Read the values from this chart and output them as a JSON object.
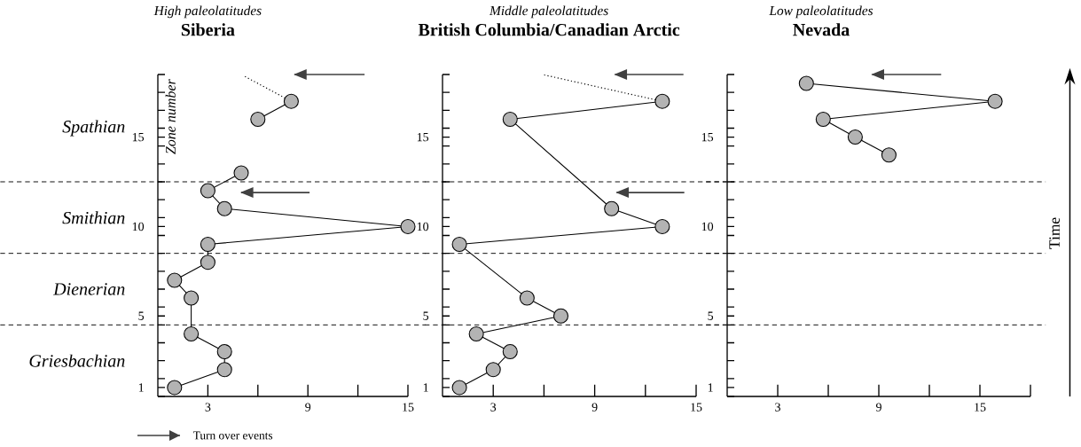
{
  "chart_data": [
    {
      "type": "line",
      "title": "Siberia",
      "subtitle": "High paleolatitudes",
      "ylabel": "Zone number",
      "marker": "circle",
      "line_style": "solid",
      "legend": "bottom left",
      "xlim": [
        0,
        15
      ],
      "xticks": [
        3,
        {
          "value": 6,
          "label": null
        },
        9,
        {
          "value": 12,
          "label": null
        },
        15
      ],
      "ylim": [
        0.5,
        18.5
      ],
      "yticks": [
        {
          "value": 0.5,
          "label": null
        },
        {
          "value": 1.5,
          "label": null
        },
        {
          "value": 2.5,
          "label": null
        },
        {
          "value": 3.5,
          "label": null
        },
        {
          "value": 4.5,
          "label": null
        },
        {
          "value": 5.5,
          "label": null
        },
        {
          "value": 6.5,
          "label": null
        },
        {
          "value": 7.5,
          "label": null
        },
        {
          "value": 8.5,
          "label": null
        },
        {
          "value": 9.5,
          "label": null
        },
        {
          "value": 10.5,
          "label": null
        },
        {
          "value": 11.5,
          "label": null
        },
        {
          "value": 12.5,
          "label": null
        },
        {
          "value": 13.5,
          "label": null
        },
        {
          "value": 14.5,
          "label": null
        },
        {
          "value": 15.5,
          "label": null
        },
        {
          "value": 16.5,
          "label": null
        },
        {
          "value": 17.5,
          "label": null
        },
        {
          "value": 18.5,
          "label": null
        },
        1,
        5,
        10,
        15
      ],
      "ref_lines": [
        {
          "axis": "y",
          "value": 4.5,
          "line_style": "dashed"
        },
        {
          "axis": "y",
          "value": 8.5,
          "line_style": "dashed"
        },
        {
          "axis": "y",
          "value": 12.5,
          "line_style": "dashed"
        }
      ],
      "annotations": [
        "Griesbachian",
        "Dienerian",
        "Smithian",
        "Spathian"
      ],
      "series": [
        {
          "color": "#b3b3b3",
          "x": [
            1,
            4,
            4,
            2,
            2,
            1,
            3,
            3,
            15,
            4,
            3,
            5,
            null,
            6,
            8
          ],
          "values": [
            1,
            2,
            3,
            4,
            6,
            7,
            8,
            9,
            10,
            11,
            12,
            13,
            null,
            16,
            17
          ]
        },
        {
          "type": "line",
          "line_style": "dotted",
          "marker": "none",
          "color": "#000000",
          "x": [
            8,
            5.2
          ],
          "values": [
            17,
            18.4
          ]
        },
        {
          "type": "line",
          "name": "Turn over events",
          "marker": "none",
          "color": "#404040",
          "x": [
            12.4,
            8.2
          ],
          "values": [
            18.5,
            18.5
          ]
        },
        {
          "type": "line",
          "marker": "none",
          "color": "#404040",
          "x": [
            9.1,
            5
          ],
          "values": [
            11.9,
            11.9
          ]
        }
      ]
    },
    {
      "type": "line",
      "title": "British Columbia/Canadian Arctic",
      "subtitle": "Middle paleolatitudes",
      "marker": "circle",
      "line_style": "solid",
      "xlim": [
        0,
        15
      ],
      "xticks": [
        3,
        {
          "value": 6,
          "label": null
        },
        9,
        {
          "value": 12,
          "label": null
        },
        15
      ],
      "ylim": [
        0.5,
        18.5
      ],
      "yticks": [
        {
          "value": 0.5,
          "label": null
        },
        {
          "value": 1.5,
          "label": null
        },
        {
          "value": 2.5,
          "label": null
        },
        {
          "value": 3.5,
          "label": null
        },
        {
          "value": 4.5,
          "label": null
        },
        {
          "value": 5.5,
          "label": null
        },
        {
          "value": 6.5,
          "label": null
        },
        {
          "value": 7.5,
          "label": null
        },
        {
          "value": 8.5,
          "label": null
        },
        {
          "value": 9.5,
          "label": null
        },
        {
          "value": 10.5,
          "label": null
        },
        {
          "value": 11.5,
          "label": null
        },
        {
          "value": 12.5,
          "label": null
        },
        {
          "value": 13.5,
          "label": null
        },
        {
          "value": 14.5,
          "label": null
        },
        {
          "value": 15.5,
          "label": null
        },
        {
          "value": 16.5,
          "label": null
        },
        {
          "value": 17.5,
          "label": null
        },
        {
          "value": 18.5,
          "label": null
        },
        1,
        5,
        10,
        15
      ],
      "ref_lines": [
        {
          "axis": "y",
          "value": 4.5,
          "line_style": "dashed"
        },
        {
          "axis": "y",
          "value": 8.5,
          "line_style": "dashed"
        },
        {
          "axis": "y",
          "value": 12.5,
          "line_style": "dashed"
        }
      ],
      "series": [
        {
          "color": "#b3b3b3",
          "x": [
            1,
            3,
            4,
            2,
            7,
            5,
            1,
            13,
            10,
            4,
            13
          ],
          "values": [
            1,
            2,
            3,
            4,
            5,
            6,
            9,
            10,
            11,
            16,
            17
          ]
        },
        {
          "type": "line",
          "line_style": "dotted",
          "marker": "none",
          "color": "#000000",
          "x": [
            13,
            5.9
          ],
          "values": [
            17,
            18.5
          ]
        },
        {
          "type": "line",
          "marker": "none",
          "color": "#404040",
          "x": [
            14.25,
            10.2
          ],
          "values": [
            18.5,
            18.5
          ]
        },
        {
          "type": "line",
          "marker": "none",
          "color": "#404040",
          "x": [
            14.3,
            10.3
          ],
          "values": [
            11.9,
            11.9
          ]
        }
      ]
    },
    {
      "type": "line",
      "title": "Nevada",
      "subtitle": "Low paleolatitudes",
      "marker": "circle",
      "line_style": "solid",
      "annotations": [
        "Time"
      ],
      "xlim": [
        0,
        18
      ],
      "xticks": [
        3,
        {
          "value": 6,
          "label": null
        },
        9,
        {
          "value": 12,
          "label": null
        },
        15,
        {
          "value": 18,
          "label": null
        }
      ],
      "ylim": [
        0.5,
        18.5
      ],
      "yticks": [
        {
          "value": 0.5,
          "label": null
        },
        {
          "value": 1.5,
          "label": null
        },
        {
          "value": 2.5,
          "label": null
        },
        {
          "value": 3.5,
          "label": null
        },
        {
          "value": 4.5,
          "label": null
        },
        {
          "value": 5.5,
          "label": null
        },
        {
          "value": 6.5,
          "label": null
        },
        {
          "value": 7.5,
          "label": null
        },
        {
          "value": 8.5,
          "label": null
        },
        {
          "value": 9.5,
          "label": null
        },
        {
          "value": 10.5,
          "label": null
        },
        {
          "value": 11.5,
          "label": null
        },
        {
          "value": 12.5,
          "label": null
        },
        {
          "value": 13.5,
          "label": null
        },
        {
          "value": 14.5,
          "label": null
        },
        {
          "value": 15.5,
          "label": null
        },
        {
          "value": 16.5,
          "label": null
        },
        {
          "value": 17.5,
          "label": null
        },
        {
          "value": 18.5,
          "label": null
        },
        1,
        5,
        10,
        15
      ],
      "ref_lines": [
        {
          "axis": "y",
          "value": 4.5,
          "line_style": "dashed"
        },
        {
          "axis": "y",
          "value": 8.5,
          "line_style": "dashed"
        },
        {
          "axis": "y",
          "value": 12.5,
          "line_style": "dashed"
        }
      ],
      "series": [
        {
          "color": "#b3b3b3",
          "x": [
            4.7,
            15.9,
            5.7,
            7.6,
            9.6
          ],
          "values": [
            18,
            17,
            16,
            15,
            14
          ]
        },
        {
          "type": "line",
          "marker": "none",
          "color": "#404040",
          "x": [
            12.7,
            8.6
          ],
          "values": [
            18.5,
            18.5
          ]
        }
      ]
    }
  ]
}
